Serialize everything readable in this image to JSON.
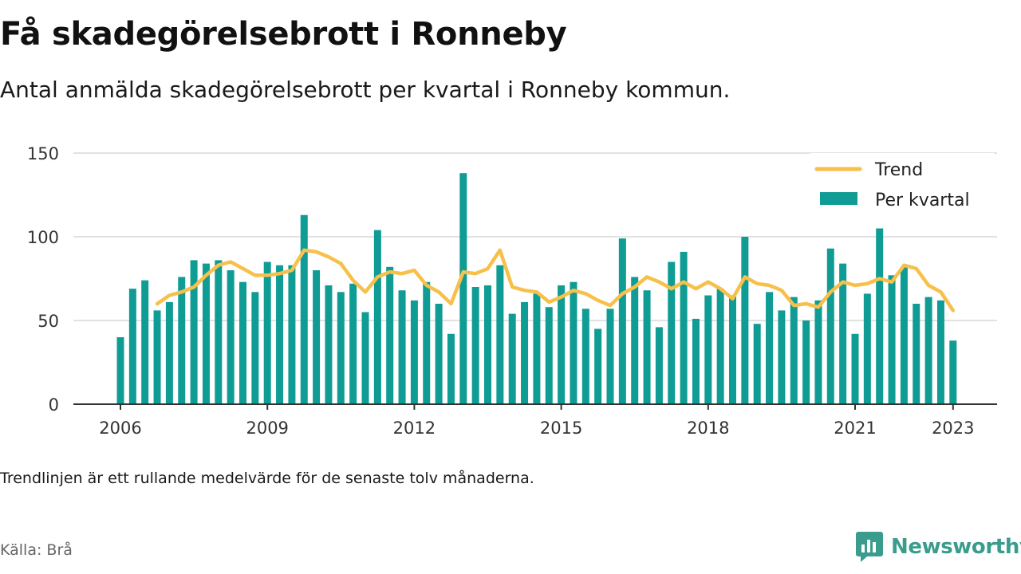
{
  "title": "Få skadegörelsebrott i Ronneby",
  "subtitle": "Antal anmälda skadegörelsebrott per kvartal i Ronneby kommun.",
  "note": "Trendlinjen är ett rullande medelvärde för de senaste tolv månaderna.",
  "source": "Källa: Brå",
  "brand": {
    "name": "Newsworthy",
    "icon": "newsworthy-logo-icon"
  },
  "colors": {
    "bars": "#0f9c94",
    "trend": "#f7c04a",
    "grid": "#d9d9d9",
    "axis": "#333333"
  },
  "chart_data": {
    "type": "bar",
    "x_tick_labels": [
      "2006",
      "2009",
      "2012",
      "2015",
      "2018",
      "2021",
      "2023"
    ],
    "y_tick_labels": [
      "0",
      "50",
      "100",
      "150"
    ],
    "ylim": [
      0,
      150
    ],
    "grid": true,
    "legend_position": "top-right",
    "legend": [
      "Trend",
      "Per kvartal"
    ],
    "x_start_quarter": "2006 Q1",
    "series": [
      {
        "name": "Per kvartal",
        "type": "bar",
        "values": [
          40,
          69,
          74,
          56,
          61,
          76,
          86,
          84,
          86,
          80,
          73,
          67,
          85,
          83,
          83,
          113,
          80,
          71,
          67,
          72,
          55,
          104,
          82,
          68,
          62,
          73,
          60,
          42,
          138,
          70,
          71,
          83,
          54,
          61,
          66,
          58,
          71,
          73,
          57,
          45,
          57,
          99,
          76,
          68,
          46,
          85,
          91,
          51,
          65,
          69,
          65,
          100,
          48,
          67,
          56,
          64,
          50,
          62,
          93,
          84,
          42,
          66,
          105,
          77,
          82,
          60,
          64,
          62,
          38
        ]
      },
      {
        "name": "Trend",
        "type": "line",
        "values": [
          null,
          null,
          null,
          60,
          65,
          67,
          70,
          77,
          83,
          85,
          81,
          77,
          77,
          78,
          80,
          92,
          91,
          88,
          84,
          74,
          67,
          76,
          79,
          78,
          80,
          71,
          67,
          60,
          79,
          78,
          81,
          92,
          70,
          68,
          67,
          61,
          64,
          68,
          66,
          62,
          59,
          66,
          70,
          76,
          73,
          69,
          73,
          69,
          73,
          69,
          63,
          76,
          72,
          71,
          68,
          59,
          60,
          58,
          67,
          73,
          71,
          72,
          75,
          73,
          83,
          81,
          71,
          67,
          56
        ]
      }
    ]
  }
}
